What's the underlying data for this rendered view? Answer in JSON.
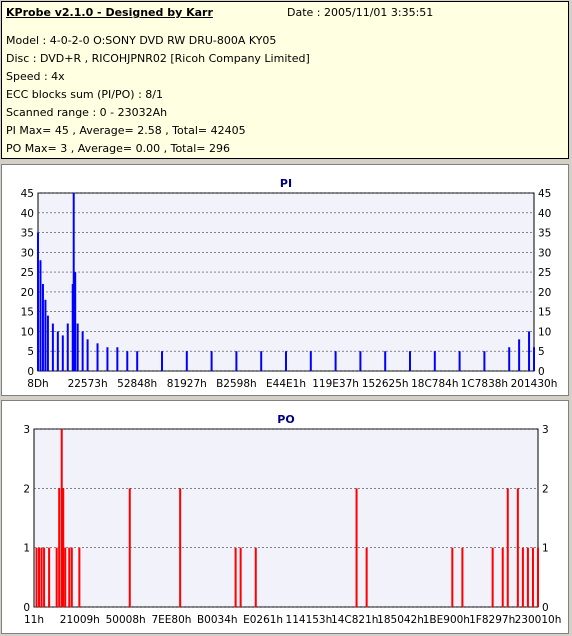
{
  "info": {
    "title": "KProbe v2.1.0 - Designed by Karr",
    "date": "Date : 2005/11/01 3:35:51",
    "lines": [
      "Model : 4-0-2-0 O:SONY    DVD RW DRU-800A  KY05",
      "Disc : DVD+R , RICOHJPNR02 [Ricoh Company Limited]",
      "Speed : 4x",
      "ECC blocks sum (PI/PO) : 8/1",
      "Scanned range : 0 - 23032Ah",
      "PI Max= 45 , Average= 2.58 , Total= 42405",
      "PO Max= 3 , Average= 0.00 , Total= 296"
    ]
  },
  "chart_data": [
    {
      "type": "bar",
      "title": "PI",
      "color": "#0000ff",
      "ylim": [
        0,
        45
      ],
      "yticks": [
        0,
        5,
        10,
        15,
        20,
        25,
        30,
        35,
        40,
        45
      ],
      "xticks": [
        "8Dh",
        "22573h",
        "52848h",
        "81927h",
        "B2598h",
        "E44E1h",
        "119E37h",
        "152625h",
        "18C784h",
        "1C7838h",
        "201430h"
      ],
      "xlim": [
        0,
        1
      ],
      "series": [
        {
          "x": [
            0.0,
            0.005,
            0.01,
            0.015,
            0.02,
            0.03,
            0.04,
            0.05,
            0.06,
            0.07,
            0.072,
            0.075,
            0.08,
            0.09,
            0.1,
            0.12,
            0.14,
            0.16,
            0.18,
            0.2,
            0.25,
            0.3,
            0.35,
            0.4,
            0.45,
            0.5,
            0.55,
            0.6,
            0.65,
            0.7,
            0.75,
            0.8,
            0.85,
            0.9,
            0.95,
            0.97,
            0.99,
            1.0
          ],
          "values": [
            35,
            28,
            22,
            18,
            14,
            12,
            10,
            9,
            12,
            22,
            45,
            25,
            12,
            10,
            8,
            7,
            6,
            6,
            5,
            5,
            5,
            5,
            5,
            5,
            5,
            5,
            5,
            5,
            5,
            5,
            5,
            5,
            5,
            5,
            6,
            8,
            10,
            6
          ]
        }
      ]
    },
    {
      "type": "bar",
      "title": "PO",
      "color": "#ff0000",
      "ylim": [
        0,
        3
      ],
      "yticks": [
        0,
        1,
        2,
        3
      ],
      "xticks": [
        "11h",
        "21009h",
        "50008h",
        "7EE80h",
        "B0034h",
        "E0261h",
        "114153h",
        "14C821h",
        "185042h",
        "1BE900h",
        "1F8297h",
        "230010h"
      ],
      "xlim": [
        0,
        1
      ],
      "series": [
        {
          "x": [
            0.005,
            0.01,
            0.015,
            0.02,
            0.03,
            0.045,
            0.05,
            0.055,
            0.058,
            0.062,
            0.07,
            0.075,
            0.09,
            0.19,
            0.29,
            0.4,
            0.41,
            0.44,
            0.64,
            0.66,
            0.83,
            0.85,
            0.91,
            0.93,
            0.94,
            0.96,
            0.97,
            0.98,
            0.99,
            1.0
          ],
          "values": [
            1,
            1,
            1,
            1,
            1,
            1,
            2,
            3,
            2,
            1,
            1,
            1,
            1,
            2,
            2,
            1,
            1,
            1,
            2,
            1,
            1,
            1,
            1,
            1,
            2,
            2,
            1,
            1,
            1,
            1
          ]
        }
      ]
    }
  ]
}
